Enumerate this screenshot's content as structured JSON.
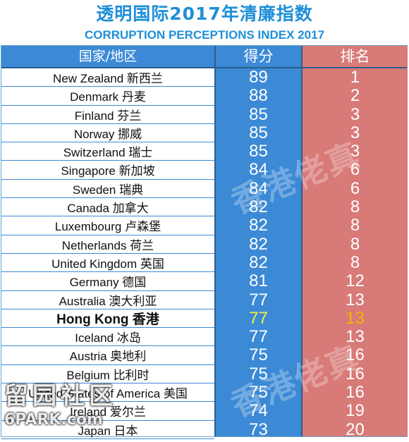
{
  "title_zh": "透明国际2017年清廉指数",
  "title_en": "CORRUPTION PERCEPTIONS INDEX 2017",
  "chart_data": {
    "type": "table",
    "headers": [
      "国家/地区",
      "得分",
      "排名"
    ],
    "rows": [
      {
        "country": "New Zealand 新西兰",
        "score": "89",
        "rank": "1"
      },
      {
        "country": "Denmark 丹麦",
        "score": "88",
        "rank": "2"
      },
      {
        "country": "Finland 芬兰",
        "score": "85",
        "rank": "3"
      },
      {
        "country": "Norway 挪威",
        "score": "85",
        "rank": "3"
      },
      {
        "country": "Switzerland 瑞士",
        "score": "85",
        "rank": "3"
      },
      {
        "country": "Singapore 新加坡",
        "score": "84",
        "rank": "6"
      },
      {
        "country": "Sweden 瑞典",
        "score": "84",
        "rank": "6"
      },
      {
        "country": "Canada 加拿大",
        "score": "82",
        "rank": "8"
      },
      {
        "country": "Luxembourg 卢森堡",
        "score": "82",
        "rank": "8"
      },
      {
        "country": "Netherlands 荷兰",
        "score": "82",
        "rank": "8"
      },
      {
        "country": "United Kingdom 英国",
        "score": "82",
        "rank": "8"
      },
      {
        "country": "Germany 德国",
        "score": "81",
        "rank": "12"
      },
      {
        "country": "Australia 澳大利亚",
        "score": "77",
        "rank": "13"
      },
      {
        "country": "Hong Kong 香港",
        "score": "77",
        "rank": "13",
        "highlight": true
      },
      {
        "country": "Iceland 冰岛",
        "score": "77",
        "rank": "13"
      },
      {
        "country": "Austria 奥地利",
        "score": "75",
        "rank": "16"
      },
      {
        "country": "Belgium 比利时",
        "score": "75",
        "rank": "16"
      },
      {
        "country": "United States of America 美国",
        "score": "75",
        "rank": "16"
      },
      {
        "country": "Ireland 爱尔兰",
        "score": "74",
        "rank": "19"
      },
      {
        "country": "Japan 日本",
        "score": "73",
        "rank": "20"
      }
    ]
  },
  "colors": {
    "title": "#1e8fd8",
    "score_column": "#3c8ad6",
    "rank_column": "#d87a78",
    "highlight_score": "#f4ef3a",
    "highlight_rank": "#f5b400"
  },
  "watermarks": {
    "center": "香港佬真",
    "logo_top": "留园社区",
    "logo_bottom": "6PARK.com"
  }
}
